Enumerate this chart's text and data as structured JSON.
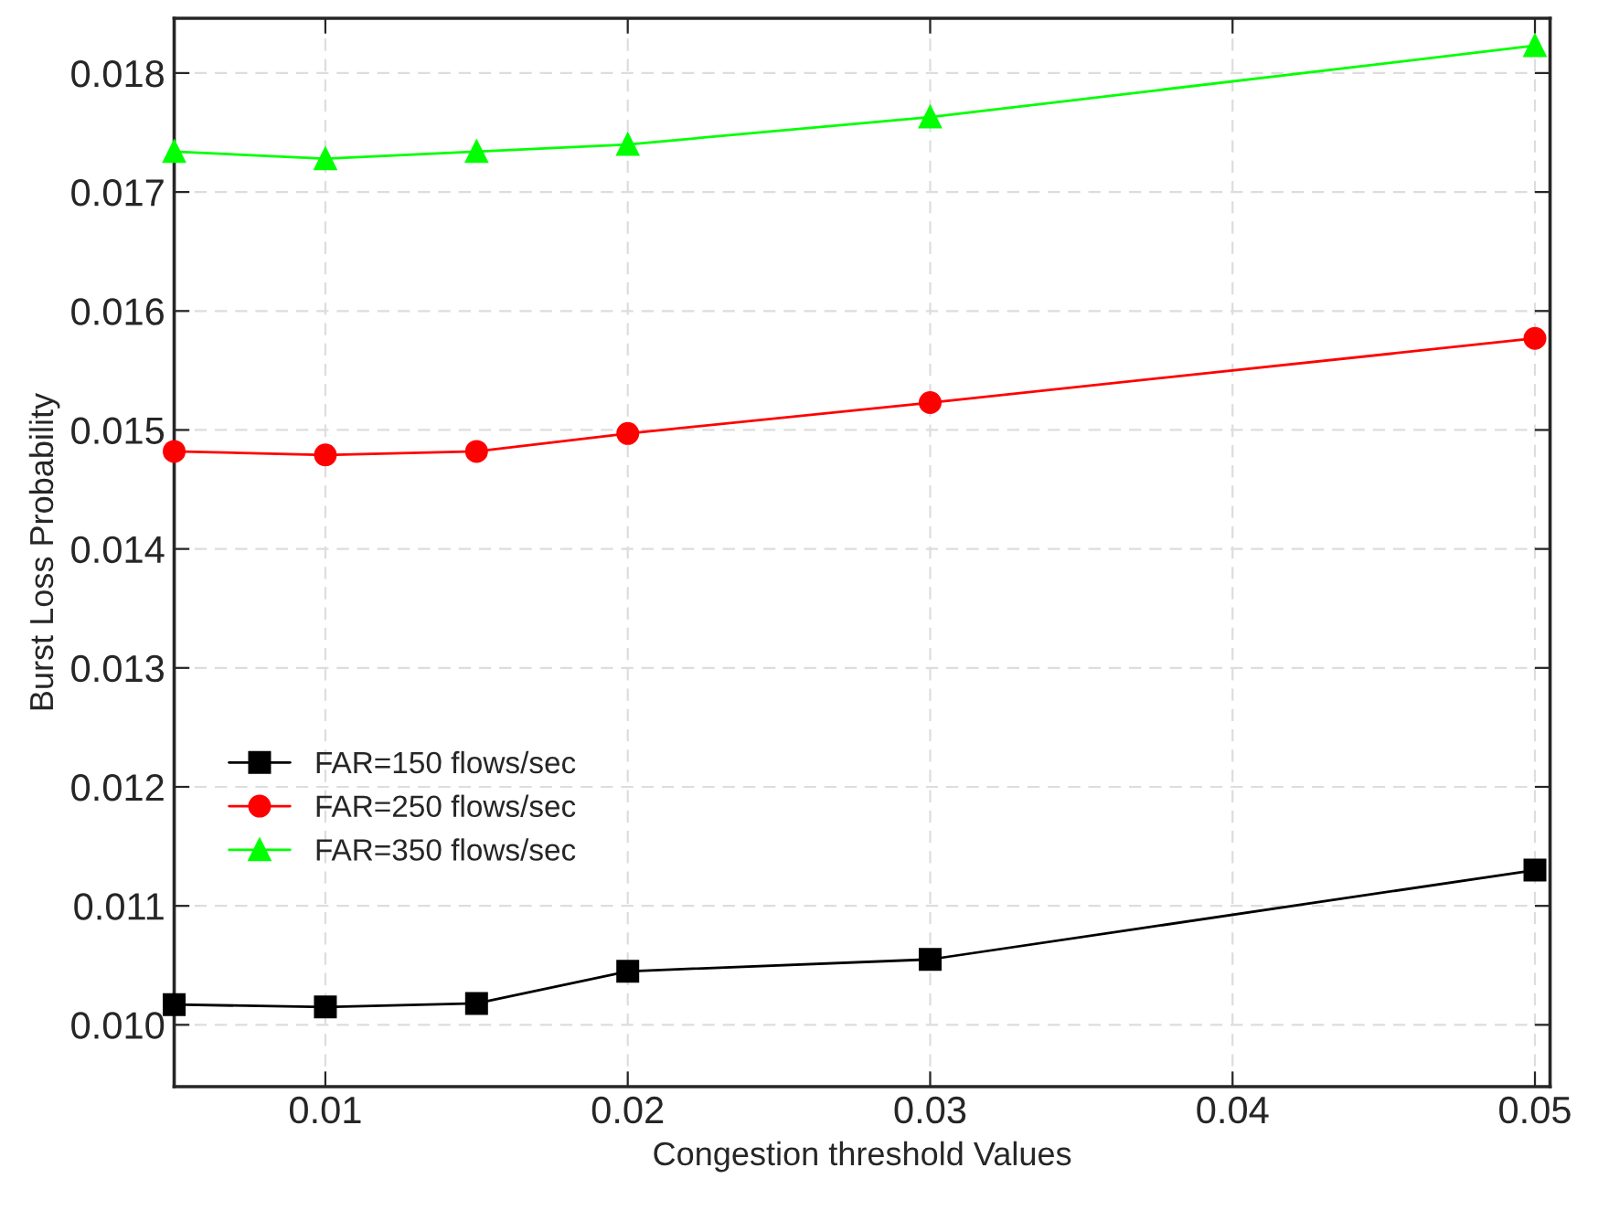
{
  "chart_data": {
    "type": "line",
    "xlabel": "Congestion threshold Values",
    "ylabel": "Burst Loss Probability",
    "x": [
      0.005,
      0.01,
      0.015,
      0.02,
      0.03,
      0.05
    ],
    "series": [
      {
        "name": "FAR=150 flows/sec",
        "color": "#000000",
        "marker": "square",
        "values": [
          0.01017,
          0.01015,
          0.01018,
          0.01045,
          0.01055,
          0.0113
        ]
      },
      {
        "name": "FAR=250 flows/sec",
        "color": "#ff0000",
        "marker": "circle",
        "values": [
          0.01482,
          0.01479,
          0.01482,
          0.01497,
          0.01523,
          0.01577
        ]
      },
      {
        "name": "FAR=350 flows/sec",
        "color": "#00ff00",
        "marker": "triangle",
        "values": [
          0.01734,
          0.01728,
          0.01734,
          0.0174,
          0.01763,
          0.01823
        ]
      }
    ],
    "xlim": [
      0.005,
      0.0505
    ],
    "xticks": [
      0.01,
      0.02,
      0.03,
      0.04,
      0.05
    ],
    "ylim": [
      0.00948,
      0.01846
    ],
    "yticks": [
      {
        "value": 0.01,
        "label": "0.010"
      },
      0.011,
      0.012,
      0.013,
      0.014,
      0.015,
      0.016,
      0.017,
      0.018
    ],
    "grid": true,
    "legend": "left",
    "line_style": "solid"
  }
}
